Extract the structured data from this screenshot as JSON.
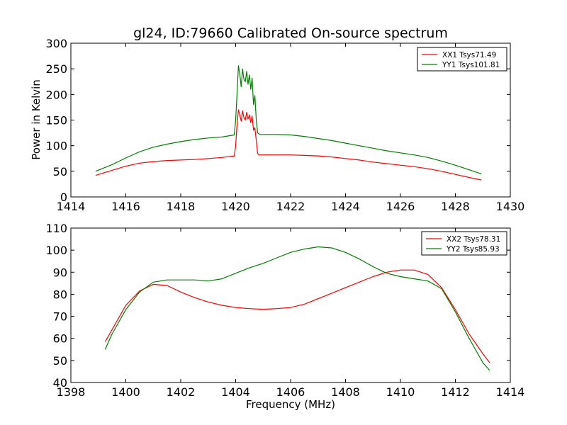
{
  "figure": {
    "title": "gl24, ID:79660 Calibrated On-source spectrum",
    "top_ylabel": "Power in Kelvin",
    "bottom_xlabel": "Frequency (MHz)"
  },
  "chart_data": [
    {
      "type": "line",
      "title": "gl24, ID:79660 Calibrated On-source spectrum",
      "xlabel": "",
      "ylabel": "Power in Kelvin",
      "xlim": [
        1414,
        1430
      ],
      "ylim": [
        0,
        300
      ],
      "xticks": [
        1414,
        1416,
        1418,
        1420,
        1422,
        1424,
        1426,
        1428,
        1430
      ],
      "yticks": [
        0,
        50,
        100,
        150,
        200,
        250,
        300
      ],
      "xtick_labels": [
        "1414",
        "1416",
        "1418",
        "1420",
        "1422",
        "1424",
        "1426",
        "1428",
        "1430"
      ],
      "ytick_labels": [
        "0",
        "50",
        "100",
        "150",
        "200",
        "250",
        "300"
      ],
      "grid": false,
      "legend_position": "top-right",
      "series": [
        {
          "name": "XX1 Tsys71.49",
          "color": "#ff0000",
          "x": [
            1414.9,
            1415.5,
            1416.0,
            1416.5,
            1417.0,
            1417.5,
            1418.0,
            1418.5,
            1419.0,
            1419.5,
            1419.95,
            1420.0,
            1420.05,
            1420.1,
            1420.15,
            1420.2,
            1420.25,
            1420.3,
            1420.35,
            1420.4,
            1420.45,
            1420.5,
            1420.55,
            1420.6,
            1420.65,
            1420.7,
            1420.75,
            1420.8,
            1420.85,
            1420.9,
            1421.0,
            1421.5,
            1422.0,
            1422.5,
            1423.0,
            1423.5,
            1424.0,
            1424.5,
            1425.0,
            1425.5,
            1426.0,
            1426.5,
            1427.0,
            1427.5,
            1428.0,
            1428.5,
            1428.95
          ],
          "values": [
            42,
            52,
            60,
            66,
            69,
            71,
            72,
            73,
            75,
            77,
            80,
            100,
            140,
            170,
            160,
            148,
            168,
            155,
            150,
            165,
            152,
            160,
            145,
            158,
            130,
            135,
            110,
            85,
            82,
            82,
            82,
            82,
            82,
            81,
            80,
            78,
            75,
            72,
            68,
            65,
            62,
            59,
            55,
            50,
            44,
            38,
            33
          ]
        },
        {
          "name": "YY1 Tsys101.81",
          "color": "#008000",
          "x": [
            1414.9,
            1415.5,
            1416.0,
            1416.5,
            1417.0,
            1417.5,
            1418.0,
            1418.5,
            1419.0,
            1419.5,
            1419.95,
            1420.0,
            1420.05,
            1420.1,
            1420.15,
            1420.2,
            1420.25,
            1420.3,
            1420.35,
            1420.4,
            1420.45,
            1420.5,
            1420.55,
            1420.6,
            1420.65,
            1420.7,
            1420.75,
            1420.8,
            1420.85,
            1420.9,
            1421.0,
            1421.5,
            1422.0,
            1422.5,
            1423.0,
            1423.5,
            1424.0,
            1424.5,
            1425.0,
            1425.5,
            1426.0,
            1426.5,
            1427.0,
            1427.5,
            1428.0,
            1428.5,
            1428.95
          ],
          "values": [
            50,
            63,
            76,
            88,
            97,
            103,
            108,
            112,
            115,
            117,
            121,
            150,
            200,
            256,
            240,
            215,
            250,
            230,
            225,
            245,
            220,
            238,
            210,
            232,
            180,
            198,
            150,
            125,
            123,
            122,
            122,
            122,
            121,
            118,
            114,
            110,
            105,
            100,
            95,
            90,
            86,
            82,
            77,
            70,
            62,
            53,
            45
          ]
        }
      ]
    },
    {
      "type": "line",
      "title": "",
      "xlabel": "Frequency (MHz)",
      "ylabel": "",
      "xlim": [
        1398,
        1414
      ],
      "ylim": [
        40,
        110
      ],
      "xticks": [
        1398,
        1400,
        1402,
        1404,
        1406,
        1408,
        1410,
        1412,
        1414
      ],
      "yticks": [
        40,
        50,
        60,
        70,
        80,
        90,
        100,
        110
      ],
      "xtick_labels": [
        "1398",
        "1400",
        "1402",
        "1404",
        "1406",
        "1408",
        "1410",
        "1412",
        "1414"
      ],
      "ytick_labels": [
        "40",
        "50",
        "60",
        "70",
        "80",
        "90",
        "100",
        "110"
      ],
      "grid": false,
      "legend_position": "top-right",
      "series": [
        {
          "name": "XX2 Tsys78.31",
          "color": "#ff0000",
          "x": [
            1399.25,
            1399.5,
            1400.0,
            1400.5,
            1401.0,
            1401.5,
            1402.0,
            1402.5,
            1403.0,
            1403.5,
            1404.0,
            1404.5,
            1405.0,
            1405.5,
            1406.0,
            1406.5,
            1407.0,
            1407.5,
            1408.0,
            1408.5,
            1409.0,
            1409.5,
            1410.0,
            1410.5,
            1411.0,
            1411.5,
            1412.0,
            1412.5,
            1413.0,
            1413.25
          ],
          "values": [
            58.5,
            64,
            75,
            81.5,
            84.5,
            84,
            81,
            78.5,
            76.5,
            75,
            74,
            73.5,
            73.2,
            73.5,
            74,
            75.5,
            78,
            80.5,
            83,
            85.5,
            88,
            90,
            91,
            91,
            89,
            83,
            73,
            62,
            53,
            49
          ]
        },
        {
          "name": "YY2 Tsys85.93",
          "color": "#008000",
          "x": [
            1399.25,
            1399.5,
            1400.0,
            1400.5,
            1401.0,
            1401.5,
            1402.0,
            1402.5,
            1403.0,
            1403.5,
            1404.0,
            1404.5,
            1405.0,
            1405.5,
            1406.0,
            1406.5,
            1407.0,
            1407.5,
            1408.0,
            1408.5,
            1409.0,
            1409.5,
            1410.0,
            1410.5,
            1411.0,
            1411.5,
            1412.0,
            1412.5,
            1413.0,
            1413.25
          ],
          "values": [
            55,
            62,
            73,
            81,
            85.5,
            86.5,
            86.5,
            86.5,
            86,
            87,
            89.5,
            92,
            94,
            96.5,
            99,
            100.5,
            101.5,
            101,
            99,
            96,
            92.5,
            89.5,
            88,
            87,
            86,
            82.5,
            72,
            60,
            49,
            45.5
          ]
        }
      ]
    }
  ]
}
